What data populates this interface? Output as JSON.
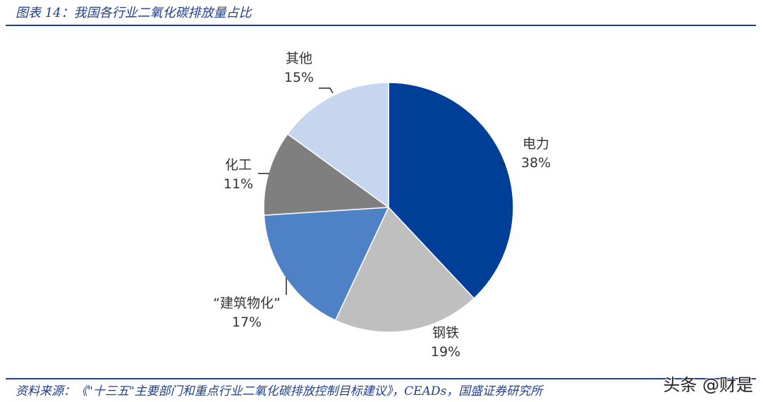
{
  "figure": {
    "title": "图表 14：我国各行业二氧化碳排放量占比",
    "source": "资料来源：《\"十三五\"主要部门和重点行业二氧化碳排放控制目标建议》，CEADs，国盛证券研究所",
    "watermark": "头条 @财是"
  },
  "chart_data": {
    "type": "pie",
    "categories": [
      "电力",
      "钢铁",
      "“建筑物化”",
      "化工",
      "其他"
    ],
    "values": [
      38,
      19,
      17,
      11,
      15
    ],
    "labels": [
      "38%",
      "19%",
      "17%",
      "11%",
      "15%"
    ],
    "colors": [
      "#003f98",
      "#bfbfbf",
      "#4f81c7",
      "#7f7f7f",
      "#c5d6ee"
    ],
    "start": "12 o'clock",
    "direction": "clockwise",
    "legend": "none"
  }
}
